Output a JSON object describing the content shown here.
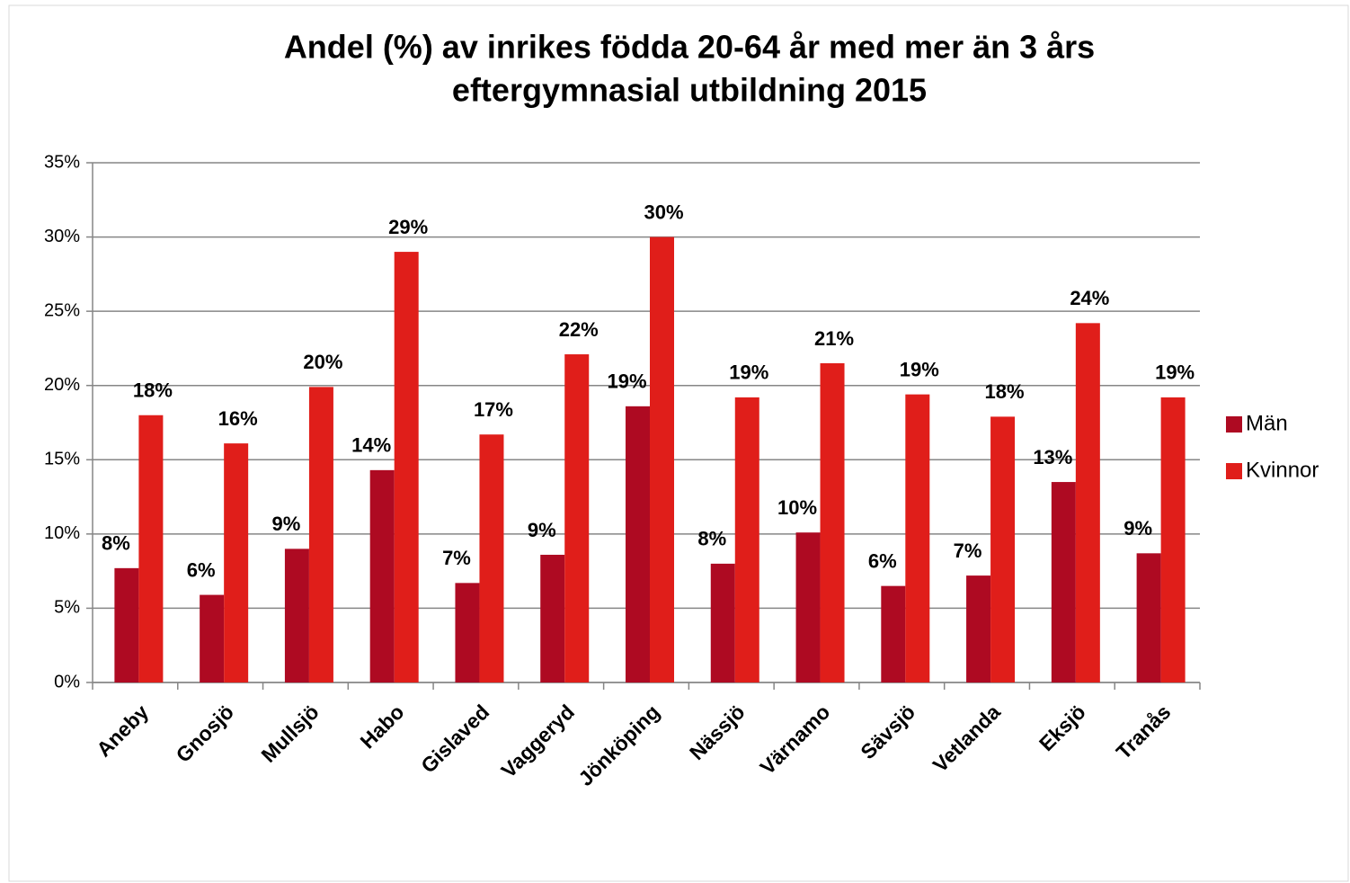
{
  "chart_data": {
    "type": "bar",
    "title": [
      "Andel (%) av inrikes födda 20-64 år med mer än 3 års",
      "eftergymnasial utbildning 2015"
    ],
    "categories": [
      "Aneby",
      "Gnosjö",
      "Mullsjö",
      "Habo",
      "Gislaved",
      "Vaggeryd",
      "Jönköping",
      "Nässjö",
      "Värnamo",
      "Sävsjö",
      "Vetlanda",
      "Eksjö",
      "Tranås"
    ],
    "series": [
      {
        "name": "Män",
        "color": "#ae0a22",
        "values": [
          7.7,
          5.9,
          9.0,
          14.3,
          6.7,
          8.6,
          18.6,
          8.0,
          10.1,
          6.5,
          7.2,
          13.5,
          8.7
        ],
        "value_labels": [
          "8%",
          "6%",
          "9%",
          "14%",
          "7%",
          "9%",
          "19%",
          "8%",
          "10%",
          "6%",
          "7%",
          "13%",
          "9%"
        ]
      },
      {
        "name": "Kvinnor",
        "color": "#e01e1a",
        "values": [
          18.0,
          16.1,
          19.9,
          29.0,
          16.7,
          22.1,
          30.0,
          19.2,
          21.5,
          19.4,
          17.9,
          24.2,
          19.2
        ],
        "value_labels": [
          "18%",
          "16%",
          "20%",
          "29%",
          "17%",
          "22%",
          "30%",
          "19%",
          "21%",
          "19%",
          "18%",
          "24%",
          "19%"
        ]
      }
    ],
    "ylim": [
      0,
      35
    ],
    "yticks": [
      {
        "value": 0,
        "label": "0%"
      },
      {
        "value": 5,
        "label": "5%"
      },
      {
        "value": 10,
        "label": "10%"
      },
      {
        "value": 15,
        "label": "15%"
      },
      {
        "value": 20,
        "label": "20%"
      },
      {
        "value": 25,
        "label": "25%"
      },
      {
        "value": 30,
        "label": "30%"
      },
      {
        "value": 35,
        "label": "35%"
      }
    ],
    "grid": true,
    "legend": "right"
  }
}
